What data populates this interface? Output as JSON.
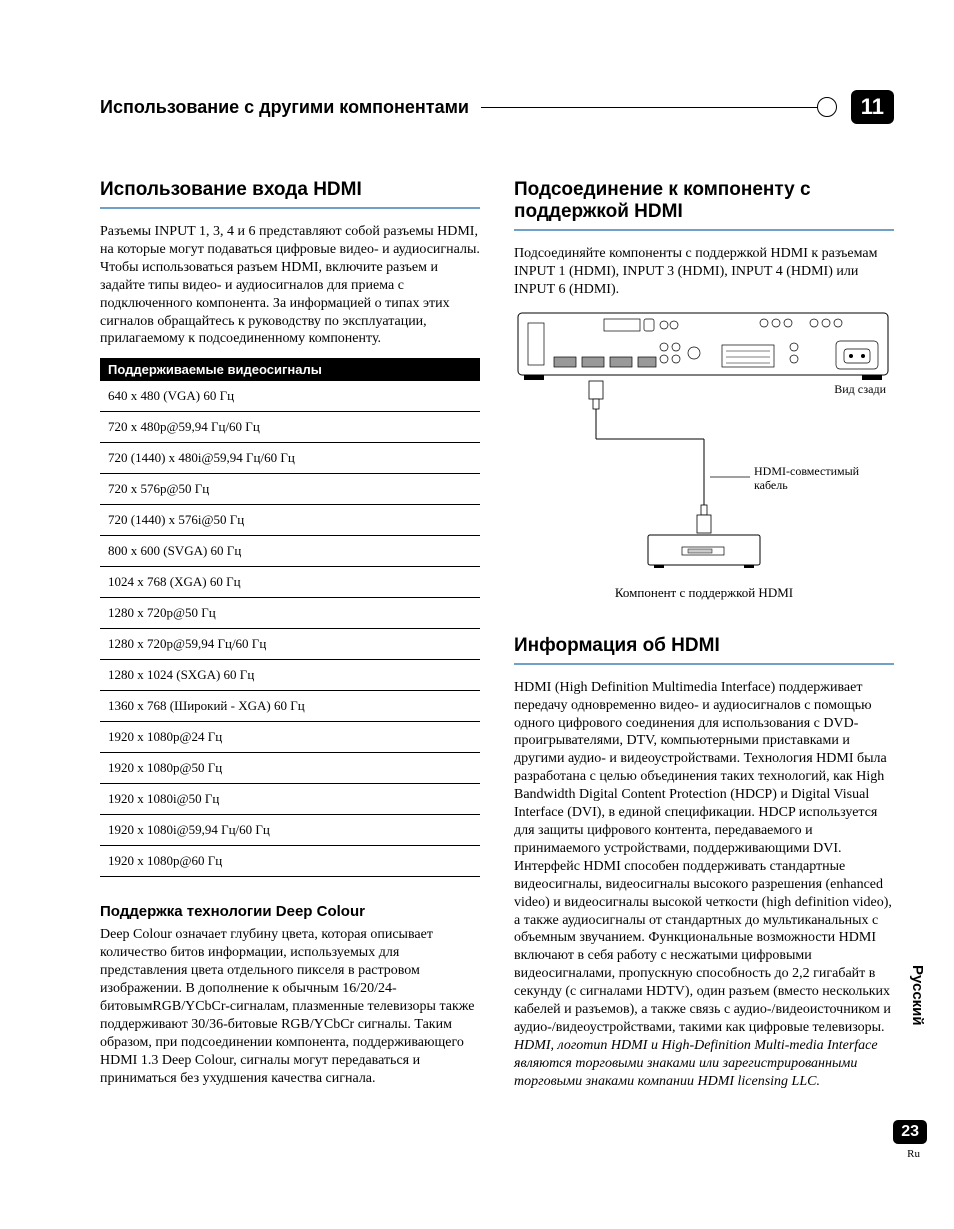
{
  "chapter": {
    "title": "Использование с другими компонентами",
    "number": "11"
  },
  "left": {
    "h_input": "Использование входа HDMI",
    "p_input": "Разъемы INPUT 1, 3, 4 и 6 представляют собой разъемы HDMI, на которые могут подаваться цифровые видео- и аудиосигналы. Чтобы использоваться разъем HDMI, включите разъем и задайте типы видео- и аудиосигналов для приема с подключенного компонента. За информацией о типах этих сигналов обращайтесь к руководству по эксплуатации, прилагаемому к подсоединенному компоненту.",
    "table_header": "Поддерживаемые видеосигналы",
    "signals": [
      "640 x 480 (VGA) 60 Гц",
      "720 x 480p@59,94 Гц/60 Гц",
      "720 (1440) x 480i@59,94 Гц/60 Гц",
      "720 x 576p@50 Гц",
      "720 (1440) x 576i@50 Гц",
      "800 x 600 (SVGA) 60 Гц",
      "1024 x 768 (XGA) 60 Гц",
      "1280 x 720p@50 Гц",
      "1280 x 720p@59,94 Гц/60 Гц",
      "1280 x 1024 (SXGA) 60 Гц",
      "1360 x 768 (Широкий - XGA) 60 Гц",
      "1920 x 1080p@24 Гц",
      "1920 x 1080p@50 Гц",
      "1920 x 1080i@50 Гц",
      "1920 x 1080i@59,94 Гц/60 Гц",
      "1920 x 1080p@60 Гц"
    ],
    "h_deep": "Поддержка технологии Deep Colour",
    "p_deep": "Deep Colour означает глубину цвета, которая описывает количество битов информации, используемых для представления цвета отдельного пикселя в растровом изображении. В дополнение к обычным 16/20/24-битовымRGB/YCbCr-сигналам, плазменные телевизоры также поддерживают 30/36-битовые RGB/YCbCr сигналы. Таким образом, при подсоединении компонента, поддерживающего HDMI 1.3 Deep Colour, сигналы могут передаваться и приниматься без ухудшения качества сигнала."
  },
  "right": {
    "h_connect": "Подсоединение к компоненту с поддержкой HDMI",
    "p_connect": "Подсоединяйте компоненты с поддержкой HDMI к разъемам INPUT 1 (HDMI), INPUT 3 (HDMI), INPUT 4 (HDMI) или INPUT 6 (HDMI).",
    "diag_rear": "Вид сзади",
    "diag_cable": "HDMI-совместимый кабель",
    "diag_component": "Компонент с поддержкой HDMI",
    "h_info": "Информация об HDMI",
    "p_info_plain": "HDMI (High Definition Multimedia Interface) поддерживает передачу одновременно видео- и аудиосигналов с помощью одного цифрового соединения для использования с DVD-проигрывателями, DTV, компьютерными приставками и другими аудио- и видеоустройствами. Технология HDMI была разработана с целью объединения таких технологий, как High Bandwidth Digital Content Protection (HDCP) и Digital Visual Interface (DVI), в единой спецификации. HDCP используется для защиты цифрового контента, передаваемого и принимаемого устройствами, поддерживающими DVI. Интерфейс HDMI способен поддерживать стандартные видеосигналы, видеосигналы высокого разрешения (enhanced video) и видеосигналы высокой четкости (high definition video), а также аудиосигналы от стандартных до мультиканальных с объемным звучанием. Функциональные возможности HDMI включают в себя работу с несжатыми цифровыми видеосигналами, пропускную способность до 2,2 гигабайт в секунду (с сигналами HDTV), один разъем (вместо нескольких кабелей и разъемов), а также связь с аудио-/видеоисточником и аудио-/видеоустройствами, такими как цифровые телевизоры. ",
    "p_info_italic": "HDMI, логотип HDMI и High-Definition Multi-media Interface являются торговыми знаками или зарегистрированными торговыми знаками компании HDMI licensing LLC."
  },
  "side": {
    "lang_tab": "Русский",
    "page": "23",
    "lang_code": "Ru"
  },
  "colors": {
    "underline": "#6fa0c9",
    "text": "#000000",
    "bg": "#ffffff"
  }
}
